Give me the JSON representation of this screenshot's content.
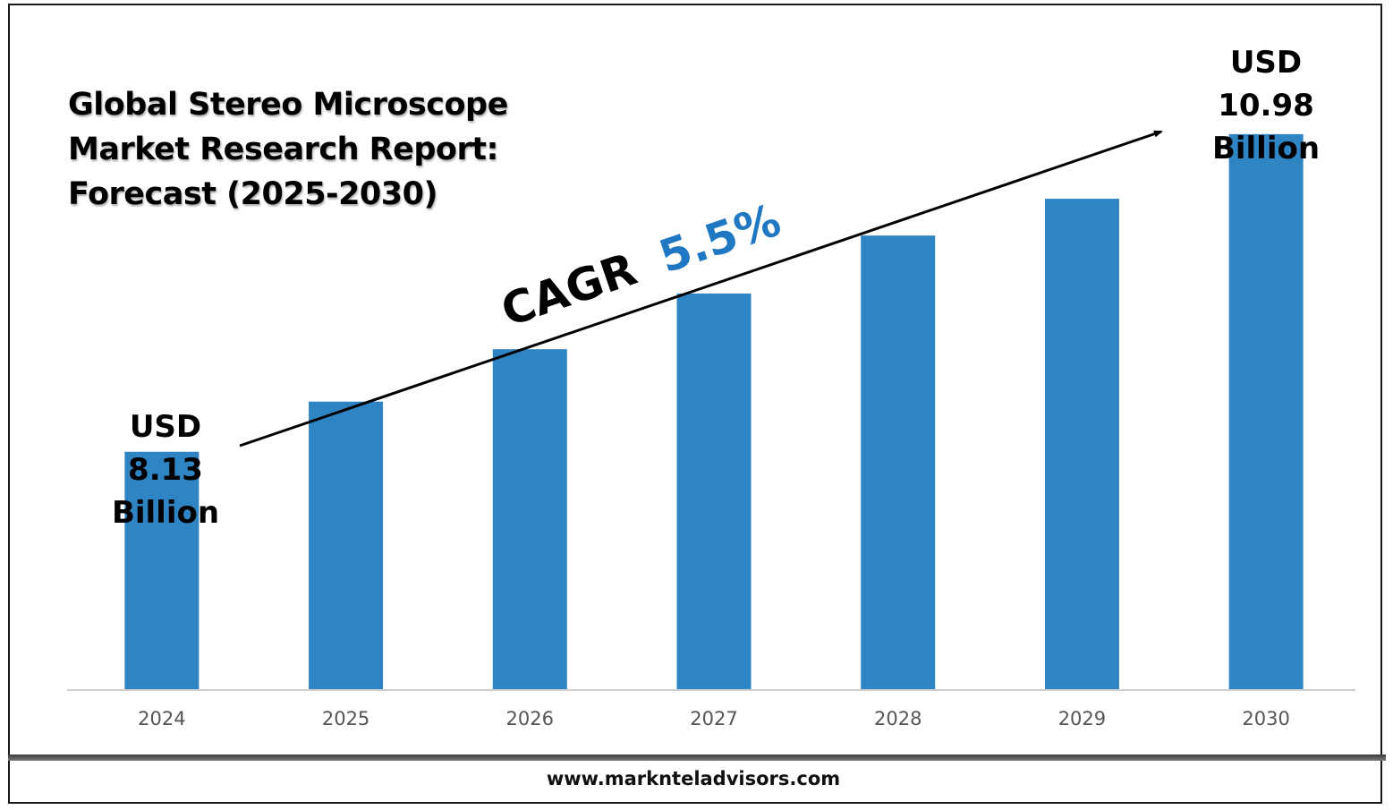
{
  "title": "Global Stereo Microscope Market Research Report: Forecast (2025-2030)",
  "footer": {
    "url": "www.marknteladvisors.com"
  },
  "annotations": {
    "cagr_label": "CAGR",
    "cagr_value": "5.5%",
    "start_label": [
      "USD",
      "8.13",
      "Billion"
    ],
    "end_label": [
      "USD",
      "10.98",
      "Billion"
    ]
  },
  "colors": {
    "bar": "#2f84c4",
    "cagr_value": "#1f78c1",
    "axis_text": "#555555"
  },
  "chart_data": {
    "type": "bar",
    "categories": [
      "2024",
      "2025",
      "2026",
      "2027",
      "2028",
      "2029",
      "2030"
    ],
    "values": [
      8.13,
      8.58,
      9.05,
      9.55,
      10.07,
      10.4,
      10.98
    ],
    "title": "Global Stereo Microscope Market Research Report: Forecast (2025-2030)",
    "xlabel": "",
    "ylabel": "",
    "ylim": [
      6.0,
      11.3
    ],
    "grid": false,
    "legend": "none"
  }
}
